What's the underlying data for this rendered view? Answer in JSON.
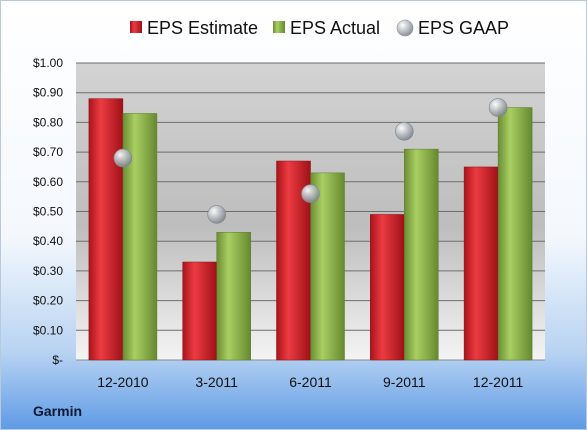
{
  "company": "Garmin",
  "chart_data": {
    "type": "bar",
    "title": "",
    "xlabel": "",
    "ylabel": "",
    "categories": [
      "12-2010",
      "3-2011",
      "6-2011",
      "9-2011",
      "12-2011"
    ],
    "series": [
      {
        "name": "EPS Estimate",
        "kind": "bar",
        "color": "#d2232a",
        "values": [
          0.88,
          0.33,
          0.67,
          0.49,
          0.65
        ]
      },
      {
        "name": "EPS Actual",
        "kind": "bar",
        "color": "#8db64a",
        "values": [
          0.83,
          0.43,
          0.63,
          0.71,
          0.85
        ]
      },
      {
        "name": "EPS GAAP",
        "kind": "marker",
        "color": "#aeb4bb",
        "values": [
          0.68,
          0.49,
          0.56,
          0.77,
          0.85
        ]
      }
    ],
    "ylim": [
      0,
      1.0
    ],
    "yticks": [
      0,
      0.1,
      0.2,
      0.3,
      0.4,
      0.5,
      0.6,
      0.7,
      0.8,
      0.9,
      1.0
    ],
    "ytick_labels": [
      "$-",
      "$0.10",
      "$0.20",
      "$0.30",
      "$0.40",
      "$0.50",
      "$0.60",
      "$0.70",
      "$0.80",
      "$0.90",
      "$1.00"
    ],
    "grid": true,
    "legend": "top"
  }
}
